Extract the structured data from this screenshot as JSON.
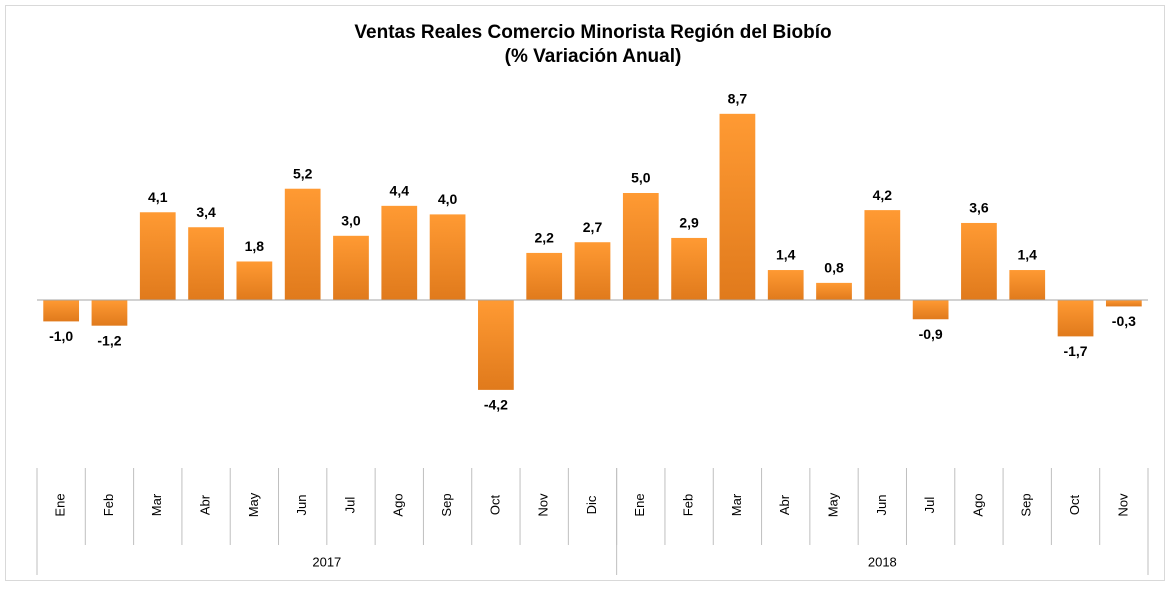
{
  "chart_data": {
    "type": "bar",
    "title": "Ventas Reales Comercio Minorista Región del Biobío",
    "subtitle": "(% Variación Anual)",
    "color": "#f28c28",
    "ylim": [
      -6,
      10
    ],
    "groups": [
      {
        "label": "2017",
        "categories": [
          "Ene",
          "Feb",
          "Mar",
          "Abr",
          "May",
          "Jun",
          "Jul",
          "Ago",
          "Sep",
          "Oct",
          "Nov",
          "Dic"
        ],
        "values": [
          -1.0,
          -1.2,
          4.1,
          3.4,
          1.8,
          5.2,
          3.0,
          4.4,
          4.0,
          -4.2,
          2.2,
          2.7
        ],
        "value_labels": [
          "-1,0",
          "-1,2",
          "4,1",
          "3,4",
          "1,8",
          "5,2",
          "3,0",
          "4,4",
          "4,0",
          "-4,2",
          "2,2",
          "2,7"
        ]
      },
      {
        "label": "2018",
        "categories": [
          "Ene",
          "Feb",
          "Mar",
          "Abr",
          "May",
          "Jun",
          "Jul",
          "Ago",
          "Sep",
          "Oct",
          "Nov"
        ],
        "values": [
          5.0,
          2.9,
          8.7,
          1.4,
          0.8,
          4.2,
          -0.9,
          3.6,
          1.4,
          -1.7,
          -0.3
        ],
        "value_labels": [
          "5,0",
          "2,9",
          "8,7",
          "1,4",
          "0,8",
          "4,2",
          "-0,9",
          "3,6",
          "1,4",
          "-1,7",
          "-0,3"
        ]
      }
    ]
  }
}
